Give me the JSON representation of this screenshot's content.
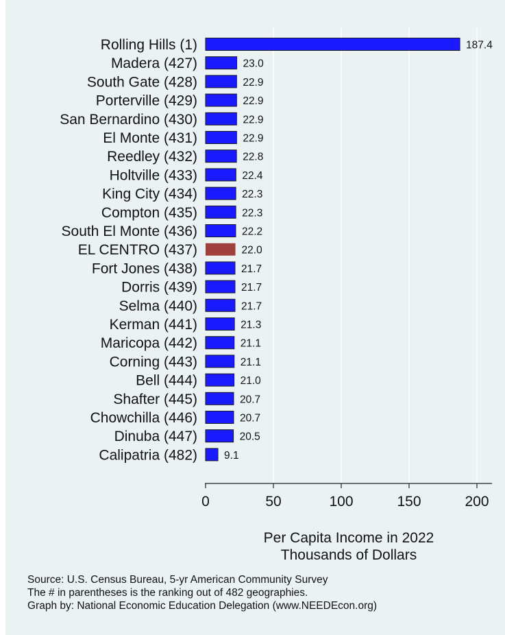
{
  "chart_data": {
    "type": "bar",
    "orientation": "horizontal",
    "categories": [
      "Rolling Hills  (1)",
      "Madera (427)",
      "South Gate (428)",
      "Porterville (429)",
      "San Bernardino (430)",
      "El Monte (431)",
      "Reedley (432)",
      "Holtville (433)",
      "King City (434)",
      "Compton (435)",
      "South El Monte (436)",
      "EL CENTRO (437)",
      "Fort Jones (438)",
      "Dorris (439)",
      "Selma (440)",
      "Kerman (441)",
      "Maricopa (442)",
      "Corning (443)",
      "Bell (444)",
      "Shafter (445)",
      "Chowchilla (446)",
      "Dinuba (447)",
      "Calipatria (482)"
    ],
    "values": [
      187.4,
      23.0,
      22.9,
      22.9,
      22.9,
      22.9,
      22.8,
      22.4,
      22.3,
      22.3,
      22.2,
      22.0,
      21.7,
      21.7,
      21.7,
      21.3,
      21.1,
      21.1,
      21.0,
      20.7,
      20.7,
      20.5,
      9.1
    ],
    "value_labels": [
      "187.4",
      "23.0",
      "22.9",
      "22.9",
      "22.9",
      "22.9",
      "22.8",
      "22.4",
      "22.3",
      "22.3",
      "22.2",
      "22.0",
      "21.7",
      "21.7",
      "21.7",
      "21.3",
      "21.1",
      "21.1",
      "21.0",
      "20.7",
      "20.7",
      "20.5",
      "9.1"
    ],
    "highlight": "EL CENTRO (437)",
    "colors": {
      "bar": "#1a1aff",
      "highlight": "#a0403c",
      "background": "#eaf2f3",
      "grid": "#ffffff"
    },
    "xlim": [
      0,
      210
    ],
    "xticks": [
      0,
      50,
      100,
      150,
      200
    ],
    "grid": true,
    "xlabel_lines": [
      "Per Capita Income in 2022",
      "Thousands of Dollars"
    ]
  },
  "notes": [
    "Source: U.S. Census Bureau, 5-yr American Community Survey",
    "The # in parentheses is the ranking out of 482 geographies.",
    "Graph by: National Economic Education Delegation (www.NEEDEcon.org)"
  ]
}
